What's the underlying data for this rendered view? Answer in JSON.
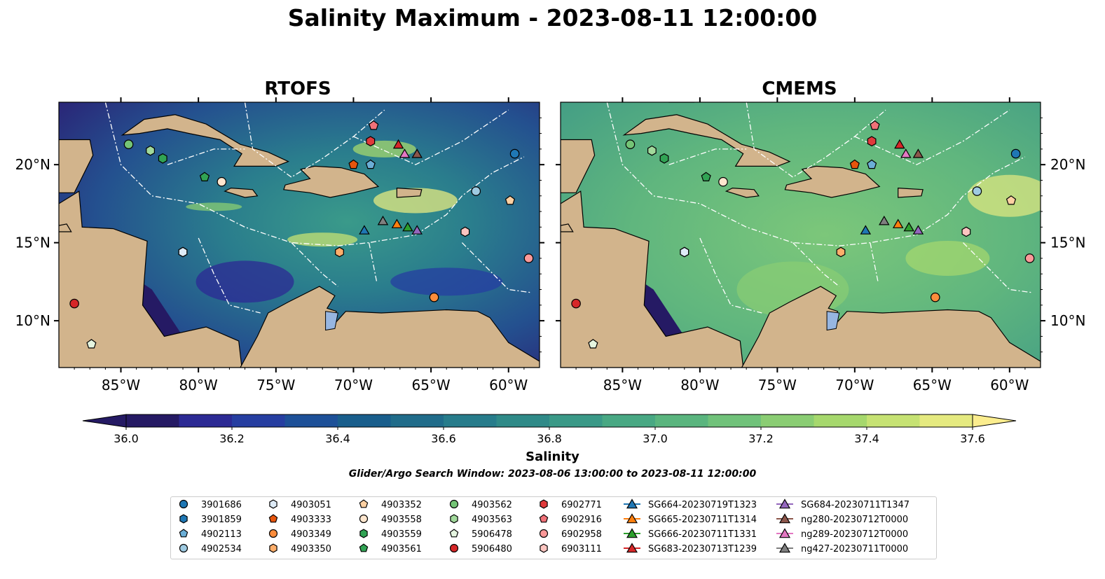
{
  "title": "Salinity Maximum - 2023-08-11 12:00:00",
  "panels": [
    {
      "title": "RTOFS"
    },
    {
      "title": "CMEMS"
    }
  ],
  "axes": {
    "x_ticks": [
      "85°W",
      "80°W",
      "75°W",
      "70°W",
      "65°W",
      "60°W"
    ],
    "y_ticks": [
      "20°N",
      "15°N",
      "10°N"
    ]
  },
  "colorbar": {
    "label": "Salinity",
    "ticks": [
      "36.0",
      "36.2",
      "36.4",
      "36.6",
      "36.8",
      "37.0",
      "37.2",
      "37.4",
      "37.6"
    ],
    "colors": [
      "#251a64",
      "#2c2a94",
      "#263ea1",
      "#1d5098",
      "#195e8c",
      "#206c8a",
      "#277c8b",
      "#2f8a88",
      "#3a9987",
      "#48a883",
      "#5ab57e",
      "#70c27a",
      "#8acd73",
      "#a6d86d",
      "#c6e273",
      "#e5ea80"
    ]
  },
  "search_window": "Glider/Argo Search Window: 2023-08-06 13:00:00 to 2023-08-11 12:00:00",
  "legend": [
    {
      "label": "3901686",
      "color": "#1f77b4",
      "marker": "circle"
    },
    {
      "label": "3901859",
      "color": "#1f77b4",
      "marker": "hexagon"
    },
    {
      "label": "4902113",
      "color": "#6baed6",
      "marker": "pentagon"
    },
    {
      "label": "4902534",
      "color": "#9ecae1",
      "marker": "circle"
    },
    {
      "label": "4903051",
      "color": "#deebf7",
      "marker": "hexagon"
    },
    {
      "label": "4903333",
      "color": "#e6550d",
      "marker": "pentagon"
    },
    {
      "label": "4903349",
      "color": "#fd8d3c",
      "marker": "circle"
    },
    {
      "label": "4903350",
      "color": "#fdae6b",
      "marker": "hexagon"
    },
    {
      "label": "4903352",
      "color": "#fdd0a2",
      "marker": "pentagon"
    },
    {
      "label": "4903558",
      "color": "#fee6ce",
      "marker": "circle"
    },
    {
      "label": "4903559",
      "color": "#31a354",
      "marker": "hexagon"
    },
    {
      "label": "4903561",
      "color": "#31a354",
      "marker": "pentagon"
    },
    {
      "label": "4903562",
      "color": "#74c476",
      "marker": "circle"
    },
    {
      "label": "4903563",
      "color": "#a1d99b",
      "marker": "hexagon"
    },
    {
      "label": "5906478",
      "color": "#e5f5e0",
      "marker": "pentagon"
    },
    {
      "label": "5906480",
      "color": "#d62728",
      "marker": "circle"
    },
    {
      "label": "6902771",
      "color": "#e03a3c",
      "marker": "hexagon"
    },
    {
      "label": "6902916",
      "color": "#f07178",
      "marker": "pentagon"
    },
    {
      "label": "6902958",
      "color": "#fc9999",
      "marker": "circle"
    },
    {
      "label": "6903111",
      "color": "#fcc5c0",
      "marker": "hexagon"
    },
    {
      "label": "SG664-20230719T1323",
      "color": "#1f77b4",
      "marker": "triangle"
    },
    {
      "label": "SG665-20230711T1314",
      "color": "#ff7f0e",
      "marker": "triangle"
    },
    {
      "label": "SG666-20230711T1331",
      "color": "#2ca02c",
      "marker": "triangle"
    },
    {
      "label": "SG683-20230713T1239",
      "color": "#d62728",
      "marker": "triangle"
    },
    {
      "label": "SG684-20230711T1347",
      "color": "#9467bd",
      "marker": "triangle"
    },
    {
      "label": "ng280-20230712T0000",
      "color": "#8c564b",
      "marker": "triangle"
    },
    {
      "label": "ng289-20230712T0000",
      "color": "#e377c2",
      "marker": "triangle"
    },
    {
      "label": "ng427-20230711T0000",
      "color": "#7f7f7f",
      "marker": "triangle"
    }
  ],
  "chart_data": {
    "type": "heatmap",
    "title": "Salinity Maximum - 2023-08-11 12:00:00",
    "subplots": [
      "RTOFS",
      "CMEMS"
    ],
    "xlim": [
      -89,
      -58
    ],
    "ylim": [
      7,
      24
    ],
    "x_ticks": [
      -85,
      -80,
      -75,
      -70,
      -65,
      -60
    ],
    "y_ticks": [
      20,
      15,
      10
    ],
    "colorbar_range": [
      36.0,
      37.6
    ],
    "colorbar_label": "Salinity",
    "observations": [
      {
        "id": "3901686",
        "lon": -59.6,
        "lat": 20.7
      },
      {
        "id": "3901859",
        "lon": -81.0,
        "lat": 14.4
      },
      {
        "id": "4902113",
        "lon": -68.9,
        "lat": 20.0
      },
      {
        "id": "4902534",
        "lon": -62.1,
        "lat": 18.3
      },
      {
        "id": "4903051",
        "lon": -81.0,
        "lat": 14.4
      },
      {
        "id": "4903333",
        "lon": -70.0,
        "lat": 20.0
      },
      {
        "id": "4903349",
        "lon": -64.8,
        "lat": 11.5
      },
      {
        "id": "4903350",
        "lon": -70.9,
        "lat": 14.4
      },
      {
        "id": "4903352",
        "lon": -59.9,
        "lat": 17.7
      },
      {
        "id": "4903558",
        "lon": -78.5,
        "lat": 18.9
      },
      {
        "id": "4903559",
        "lon": -82.3,
        "lat": 20.4
      },
      {
        "id": "4903561",
        "lon": -79.6,
        "lat": 19.2
      },
      {
        "id": "4903562",
        "lon": -84.5,
        "lat": 21.3
      },
      {
        "id": "4903563",
        "lon": -83.1,
        "lat": 20.9
      },
      {
        "id": "5906478",
        "lon": -86.9,
        "lat": 8.5
      },
      {
        "id": "5906480",
        "lon": -88.0,
        "lat": 11.1
      },
      {
        "id": "6902771",
        "lon": -68.9,
        "lat": 21.5
      },
      {
        "id": "6902916",
        "lon": -68.7,
        "lat": 22.5
      },
      {
        "id": "6902958",
        "lon": -58.7,
        "lat": 14.0
      },
      {
        "id": "6903111",
        "lon": -62.8,
        "lat": 15.7
      },
      {
        "id": "SG664-20230719T1323",
        "lon": -69.3,
        "lat": 15.8
      },
      {
        "id": "SG665-20230711T1314",
        "lon": -67.2,
        "lat": 16.2
      },
      {
        "id": "SG666-20230711T1331",
        "lon": -66.5,
        "lat": 16.0
      },
      {
        "id": "SG683-20230713T1239",
        "lon": -67.1,
        "lat": 21.3
      },
      {
        "id": "SG684-20230711T1347",
        "lon": -65.9,
        "lat": 15.8
      },
      {
        "id": "ng280-20230712T0000",
        "lon": -65.9,
        "lat": 20.7
      },
      {
        "id": "ng289-20230712T0000",
        "lon": -66.7,
        "lat": 20.7
      },
      {
        "id": "ng427-20230711T0000",
        "lon": -68.1,
        "lat": 16.4
      }
    ]
  }
}
